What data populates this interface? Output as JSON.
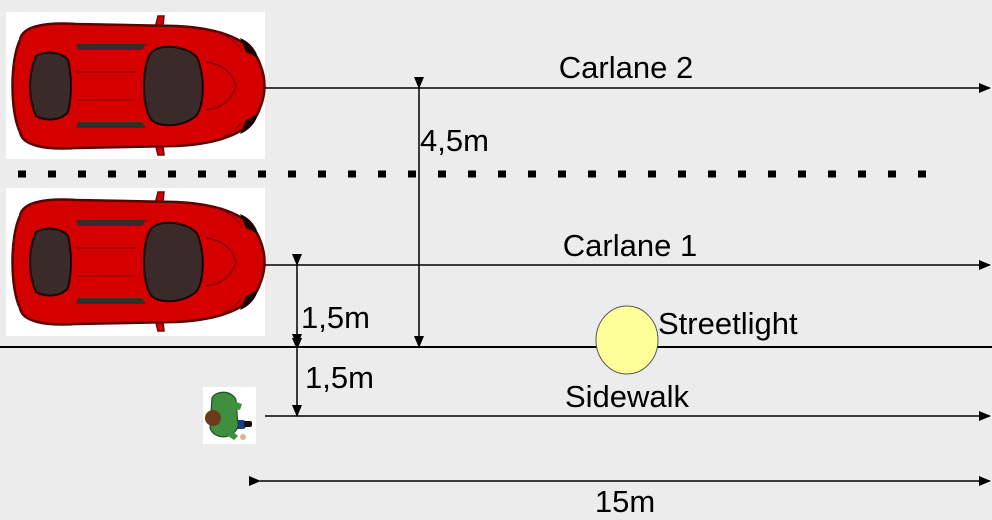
{
  "labels": {
    "carlane2": "Carlane 2",
    "carlane1": "Carlane 1",
    "sidewalk": "Sidewalk",
    "streetlight": "Streetlight",
    "dim_lane_spacing": "4,5m",
    "dim_lane1_offset": "1,5m",
    "dim_sidewalk_offset": "1,5m",
    "dim_length": "15m"
  },
  "icons": {
    "car_top": "red-car-icon",
    "car_bottom": "red-car-icon",
    "pedestrian": "pedestrian-icon",
    "streetlight": "streetlight-icon"
  },
  "colors": {
    "background": "#ececec",
    "car_body": "#d40000",
    "car_glass": "#3a2a2a",
    "streetlight_fill": "#ffff99",
    "pedestrian_shirt": "#3f8f3f"
  }
}
